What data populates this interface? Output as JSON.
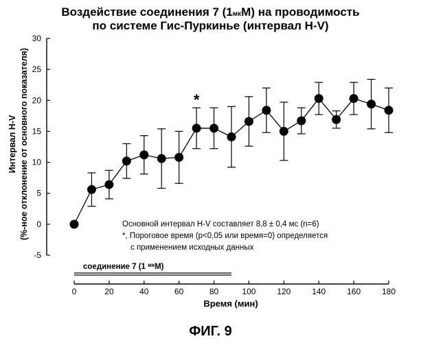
{
  "chart_data": {
    "type": "scatter",
    "title_line1": "Воздействие соединения 7 (1",
    "title_unit": "мк",
    "title_line1_end": "М) на проводимость",
    "title_line2": "по системе Гис-Пуркинье (интервал H-V)",
    "xlabel": "Время (мин)",
    "ylabel_line1": "Интервал H-V",
    "ylabel_line2": "(%-ное отклонение от основного показателя)",
    "xlim": [
      0,
      180
    ],
    "ylim": [
      -5,
      30
    ],
    "xticks": [
      0,
      20,
      40,
      60,
      80,
      100,
      120,
      140,
      160,
      180
    ],
    "yticks": [
      -5,
      0,
      5,
      10,
      15,
      20,
      25,
      30
    ],
    "grid": false,
    "x": [
      0,
      10,
      20,
      30,
      40,
      50,
      60,
      70,
      80,
      90,
      100,
      110,
      120,
      130,
      140,
      150,
      160,
      170,
      180
    ],
    "y": [
      0,
      5.6,
      6.4,
      10.2,
      11.2,
      10.6,
      10.8,
      15.5,
      15.5,
      14.1,
      16.6,
      18.4,
      15.0,
      16.7,
      20.3,
      16.9,
      20.3,
      19.4,
      18.4
    ],
    "err": [
      0,
      2.7,
      2.3,
      2.8,
      3.1,
      4.8,
      4.2,
      3.3,
      3.3,
      4.9,
      4.0,
      3.6,
      4.7,
      2.1,
      2.6,
      1.4,
      2.6,
      4.0,
      3.6
    ],
    "annotation_star": "*",
    "note_line1": "Основной интервал H-V составляет 8,8 ± 0,4 мс (n=6)",
    "note_line2": "*, Пороговое время (p<0,05 или время=0) определяется",
    "note_line3": "с применением исходных данных",
    "treatment_label": "соединение 7 (1 ",
    "treatment_unit": "мк",
    "treatment_label_end": "М)",
    "treatment_range": [
      0,
      90
    ]
  },
  "figure_label": "ФИГ. 9"
}
